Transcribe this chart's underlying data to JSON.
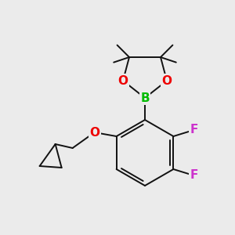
{
  "bg_color": "#ebebeb",
  "bond_color": "#111111",
  "bond_width": 1.4,
  "atom_colors": {
    "B": "#00bb00",
    "O": "#ee0000",
    "F": "#cc33cc",
    "C": "#111111"
  }
}
